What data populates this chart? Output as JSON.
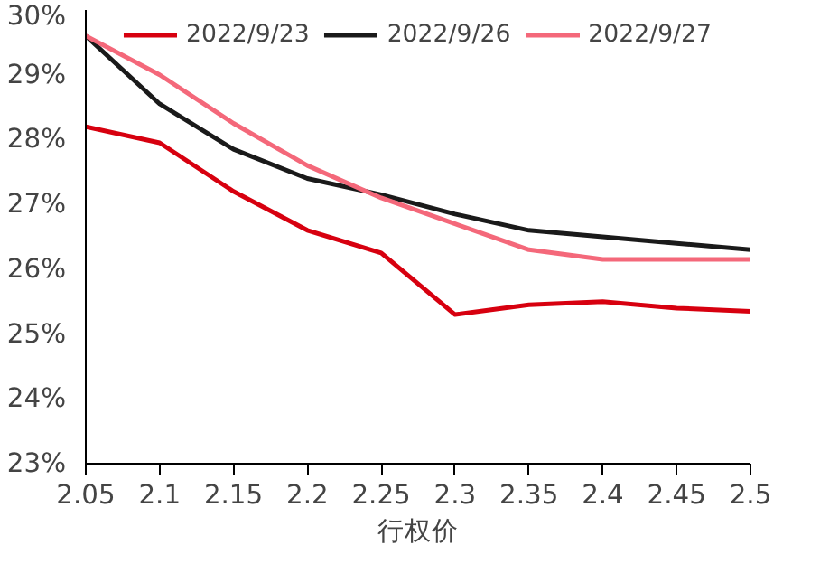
{
  "chart_data": {
    "type": "line",
    "xlabel": "行权价",
    "x": [
      2.05,
      2.1,
      2.15,
      2.2,
      2.25,
      2.3,
      2.35,
      2.4,
      2.45,
      2.5
    ],
    "series": [
      {
        "name": "2022/9/23",
        "color": "#d7000f",
        "values": [
          28.2,
          27.95,
          27.2,
          26.6,
          26.25,
          25.3,
          25.45,
          25.5,
          25.4,
          25.35
        ]
      },
      {
        "name": "2022/9/26",
        "color": "#1a1a1a",
        "values": [
          29.6,
          28.55,
          27.85,
          27.4,
          27.15,
          26.85,
          26.6,
          26.5,
          26.4,
          26.3
        ]
      },
      {
        "name": "2022/9/27",
        "color": "#f4687a",
        "values": [
          29.6,
          29.0,
          28.25,
          27.6,
          27.1,
          26.7,
          26.3,
          26.15,
          26.15,
          26.15
        ]
      }
    ],
    "xlim": [
      2.05,
      2.5
    ],
    "xticks": [
      2.05,
      2.1,
      2.15,
      2.2,
      2.25,
      2.3,
      2.35,
      2.4,
      2.45,
      2.5
    ],
    "ylim": [
      23,
      30
    ],
    "yticks": [
      {
        "value": 23,
        "label": "23%"
      },
      {
        "value": 24,
        "label": "24%"
      },
      {
        "value": 25,
        "label": "25%"
      },
      {
        "value": 26,
        "label": "26%"
      },
      {
        "value": 27,
        "label": "27%"
      },
      {
        "value": 28,
        "label": "28%"
      },
      {
        "value": 29,
        "label": "29%"
      },
      {
        "value": 30,
        "label": "30%"
      }
    ],
    "legend": "top",
    "grid": false,
    "marker": "none",
    "line_style": "solid"
  }
}
